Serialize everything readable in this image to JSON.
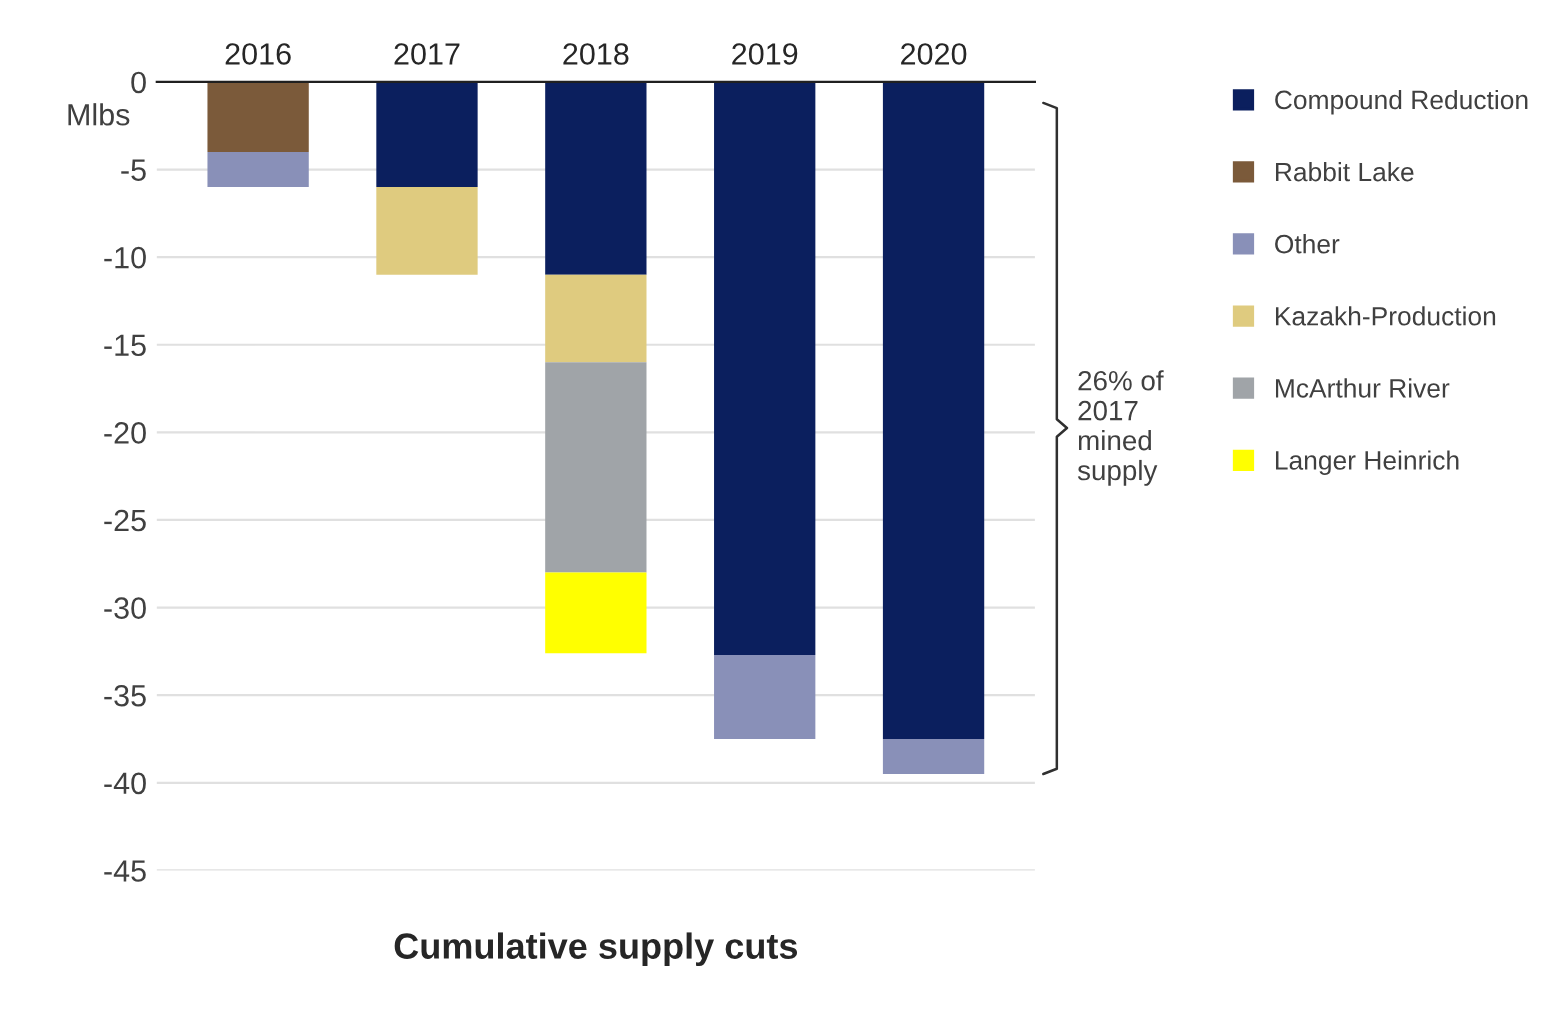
{
  "chart_data": {
    "type": "bar",
    "stacked": true,
    "title": "Cumulative supply cuts",
    "ylabel": "Mlbs",
    "categories": [
      "2016",
      "2017",
      "2018",
      "2019",
      "2020"
    ],
    "series": [
      {
        "name": "Compound Reduction",
        "color": "#0b1f5e",
        "values": [
          0,
          -6,
          -11,
          -32.7,
          -37.5
        ]
      },
      {
        "name": "Rabbit Lake",
        "color": "#7b5a3a",
        "values": [
          -4,
          0,
          0,
          0,
          0
        ]
      },
      {
        "name": "Other",
        "color": "#8990b8",
        "values": [
          -2,
          0,
          0,
          -4.8,
          -2
        ]
      },
      {
        "name": "Kazakh-Production",
        "color": "#dfcb7f",
        "values": [
          0,
          -5,
          -5,
          0,
          0
        ]
      },
      {
        "name": "McArthur River",
        "color": "#a0a4a8",
        "values": [
          0,
          0,
          -12,
          0,
          0
        ]
      },
      {
        "name": "Langer Heinrich",
        "color": "#ffff00",
        "values": [
          0,
          0,
          -4.6,
          0,
          0
        ]
      }
    ],
    "ylim": [
      -45,
      0
    ],
    "yticks": [
      0,
      -5,
      -10,
      -15,
      -20,
      -25,
      -30,
      -35,
      -40,
      -45
    ],
    "grid": "y",
    "legend": "right",
    "annotations": [
      "26% of 2017 mined supply"
    ]
  }
}
